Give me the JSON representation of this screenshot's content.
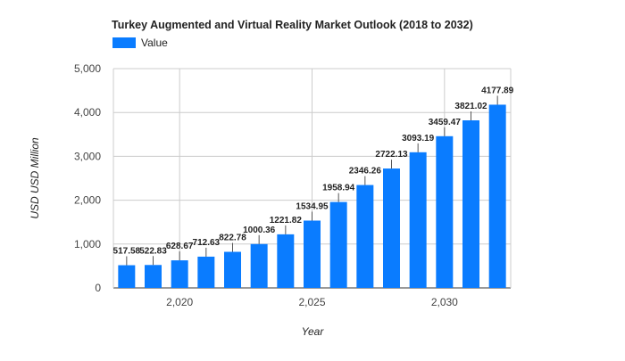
{
  "chart_data": {
    "type": "bar",
    "title": "Turkey Augmented and Virtual Reality Market Outlook (2018 to 2032)",
    "xlabel": "Year",
    "ylabel": "USD USD Million",
    "legend": {
      "label": "Value",
      "placement": "top-left"
    },
    "categories": [
      2018,
      2019,
      2020,
      2021,
      2022,
      2023,
      2024,
      2025,
      2026,
      2027,
      2028,
      2029,
      2030,
      2031,
      2032
    ],
    "series": [
      {
        "name": "Value",
        "values": [
          517.58,
          522.83,
          628.67,
          712.63,
          822.78,
          1000.36,
          1221.82,
          1534.95,
          1958.94,
          2346.26,
          2722.13,
          3093.19,
          3459.47,
          3821.02,
          4177.89
        ]
      }
    ],
    "data_labels": [
      "517.58",
      "522.83",
      "628.67",
      "712.63",
      "822.78",
      "1000.36",
      "1221.82",
      "1534.95",
      "1958.94",
      "2346.26",
      "2722.13",
      "3093.19",
      "3459.47",
      "3821.02",
      "4177.89"
    ],
    "ylim": [
      0,
      5000
    ],
    "yticks": [
      0,
      1000,
      2000,
      3000,
      4000,
      5000
    ],
    "ytick_labels": [
      "0",
      "1,000",
      "2,000",
      "3,000",
      "4,000",
      "5,000"
    ],
    "xticks": [
      2020,
      2025,
      2030
    ],
    "xtick_labels": [
      "2,020",
      "2,025",
      "2,030"
    ],
    "grid": true,
    "colors": {
      "bar": "#0a7cff",
      "grid": "#cccccc",
      "text": "#444444",
      "title": "#222222"
    }
  }
}
